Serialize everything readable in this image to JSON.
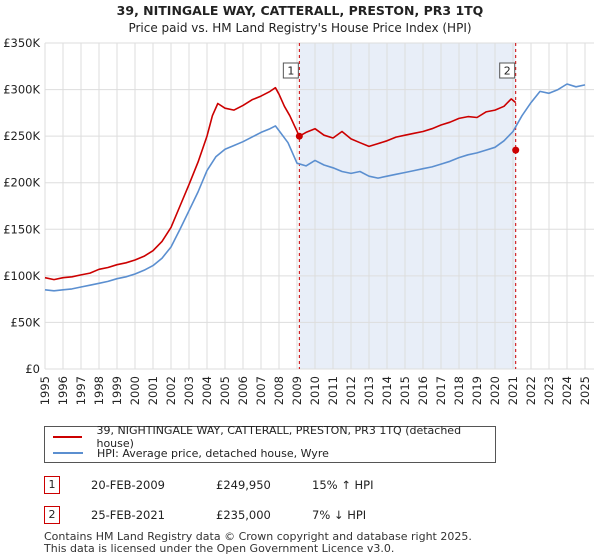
{
  "chart_data": {
    "type": "line",
    "title": "39, NITINGALE WAY, CATTERALL, PRESTON, PR3 1TQ",
    "subtitle": "Price paid vs. HM Land Registry's House Price Index (HPI)",
    "ylim": [
      0,
      350000
    ],
    "xlim": [
      1995,
      2025.5
    ],
    "y_ticks": [
      0,
      50000,
      100000,
      150000,
      200000,
      250000,
      300000,
      350000
    ],
    "y_tick_labels": [
      "£0",
      "£50K",
      "£100K",
      "£150K",
      "£200K",
      "£250K",
      "£300K",
      "£350K"
    ],
    "x_ticks": [
      1995,
      1996,
      1997,
      1998,
      1999,
      2000,
      2001,
      2002,
      2003,
      2004,
      2005,
      2006,
      2007,
      2008,
      2009,
      2010,
      2011,
      2012,
      2013,
      2014,
      2015,
      2016,
      2017,
      2018,
      2019,
      2020,
      2021,
      2022,
      2023,
      2024,
      2025
    ],
    "x_tick_labels": [
      "1995",
      "1996",
      "1997",
      "1998",
      "1999",
      "2000",
      "2001",
      "2002",
      "2003",
      "2004",
      "2005",
      "2006",
      "2007",
      "2008",
      "2009",
      "2010",
      "2011",
      "2012",
      "2013",
      "2014",
      "2015",
      "2016",
      "2017",
      "2018",
      "2019",
      "2020",
      "2021",
      "2022",
      "2023",
      "2024",
      "2025"
    ],
    "shaded_range": [
      2009.13,
      2021.15
    ],
    "series": [
      {
        "name": "39, NIGHTINGALE WAY, CATTERALL, PRESTON, PR3 1TQ (detached house)",
        "color": "#cc0000",
        "x": [
          1995,
          1995.5,
          1996,
          1996.5,
          1997,
          1997.5,
          1998,
          1998.5,
          1999,
          1999.5,
          2000,
          2000.5,
          2001,
          2001.5,
          2002,
          2002.5,
          2003,
          2003.5,
          2004,
          2004.3,
          2004.6,
          2005,
          2005.5,
          2006,
          2006.5,
          2007,
          2007.5,
          2007.8,
          2008,
          2008.3,
          2008.6,
          2009.13,
          2009.5,
          2010,
          2010.5,
          2011,
          2011.5,
          2012,
          2012.5,
          2013,
          2013.5,
          2014,
          2014.5,
          2015,
          2015.5,
          2016,
          2016.5,
          2017,
          2017.5,
          2018,
          2018.5,
          2019,
          2019.5,
          2020,
          2020.5,
          2020.9,
          2021.15
        ],
        "values": [
          98000,
          96000,
          98000,
          99000,
          101000,
          103000,
          107000,
          109000,
          112000,
          114000,
          117000,
          121000,
          127000,
          137000,
          152000,
          175000,
          198000,
          222000,
          250000,
          272000,
          285000,
          280000,
          278000,
          283000,
          289000,
          293000,
          298000,
          302000,
          295000,
          282000,
          272000,
          249950,
          254000,
          258000,
          251000,
          248000,
          255000,
          247000,
          243000,
          239000,
          242000,
          245000,
          249000,
          251000,
          253000,
          255000,
          258000,
          262000,
          265000,
          269000,
          271000,
          270000,
          276000,
          278000,
          282000,
          290000,
          286000
        ]
      },
      {
        "name": "HPI: Average price, detached house, Wyre",
        "color": "#5b8fd0",
        "x": [
          1995,
          1995.5,
          1996,
          1996.5,
          1997,
          1997.5,
          1998,
          1998.5,
          1999,
          1999.5,
          2000,
          2000.5,
          2001,
          2001.5,
          2002,
          2002.5,
          2003,
          2003.5,
          2004,
          2004.5,
          2005,
          2005.5,
          2006,
          2006.5,
          2007,
          2007.5,
          2007.8,
          2008,
          2008.5,
          2009,
          2009.5,
          2010,
          2010.5,
          2011,
          2011.5,
          2012,
          2012.5,
          2013,
          2013.5,
          2014,
          2014.5,
          2015,
          2015.5,
          2016,
          2016.5,
          2017,
          2017.5,
          2018,
          2018.5,
          2019,
          2019.5,
          2020,
          2020.5,
          2021,
          2021.5,
          2022,
          2022.5,
          2023,
          2023.5,
          2024,
          2024.5,
          2025
        ],
        "values": [
          85000,
          84000,
          85000,
          86000,
          88000,
          90000,
          92000,
          94000,
          97000,
          99000,
          102000,
          106000,
          111000,
          119000,
          131000,
          150000,
          170000,
          190000,
          213000,
          228000,
          236000,
          240000,
          244000,
          249000,
          254000,
          258000,
          261000,
          256000,
          243000,
          221000,
          218000,
          224000,
          219000,
          216000,
          212000,
          210000,
          212000,
          207000,
          205000,
          207000,
          209000,
          211000,
          213000,
          215000,
          217000,
          220000,
          223000,
          227000,
          230000,
          232000,
          235000,
          238000,
          245000,
          255000,
          272000,
          286000,
          298000,
          296000,
          300000,
          306000,
          303000,
          305000
        ]
      }
    ],
    "sales": [
      {
        "id": "1",
        "x": 2009.13,
        "value": 249950
      },
      {
        "id": "2",
        "x": 2021.15,
        "value": 235000
      }
    ]
  },
  "legend": {
    "property": "39, NIGHTINGALE WAY, CATTERALL, PRESTON, PR3 1TQ (detached house)",
    "hpi": "HPI: Average price, detached house, Wyre"
  },
  "transactions": [
    {
      "id": "1",
      "date": "20-FEB-2009",
      "price": "£249,950",
      "hpi": "15% ↑ HPI"
    },
    {
      "id": "2",
      "date": "25-FEB-2021",
      "price": "£235,000",
      "hpi": "7% ↓ HPI"
    }
  ],
  "footer": {
    "line1": "Contains HM Land Registry data © Crown copyright and database right 2025.",
    "line2": "This data is licensed under the Open Government Licence v3.0."
  },
  "colors": {
    "property": "#cc0000",
    "hpi": "#5b8fd0",
    "shade": "#e8eef8"
  }
}
